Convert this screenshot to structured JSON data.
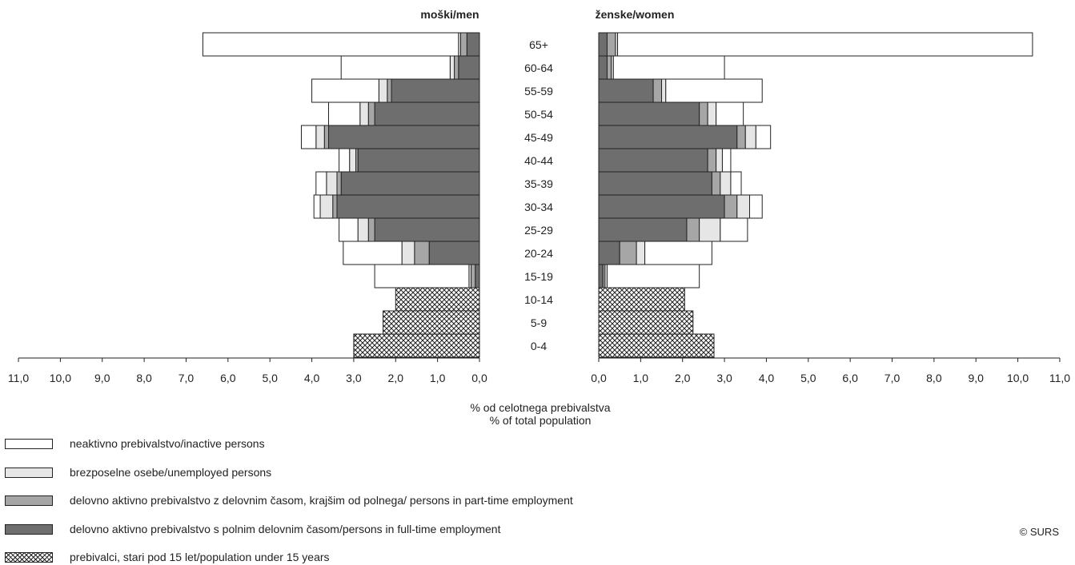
{
  "chart_data": {
    "type": "bar",
    "subtype": "population-pyramid",
    "side_titles": {
      "men": "moški/men",
      "women": "ženske/women"
    },
    "age_groups": [
      "65+",
      "60-64",
      "55-59",
      "50-54",
      "45-49",
      "40-44",
      "35-39",
      "30-34",
      "25-29",
      "20-24",
      "15-19",
      "10-14",
      "5-9",
      "0-4"
    ],
    "stack_order": [
      "full_time",
      "part_time",
      "unemployed",
      "inactive",
      "under_15"
    ],
    "series": [
      {
        "key": "full_time",
        "name": "delovno aktivno prebivalstvo s polnim delovnim časom/persons in full-time employment",
        "color": "#6e6e6e",
        "men": [
          0.3,
          0.5,
          2.1,
          2.5,
          3.6,
          2.9,
          3.3,
          3.4,
          2.5,
          1.2,
          0.1,
          0,
          0,
          0
        ],
        "women": [
          0.2,
          0.2,
          1.3,
          2.4,
          3.3,
          2.6,
          2.7,
          3.0,
          2.1,
          0.5,
          0.1,
          0,
          0,
          0
        ]
      },
      {
        "key": "part_time",
        "name": "delovno aktivno prebivalstvo z delovnim časom, krajšim od polnega/ persons in part-time employment",
        "color": "#a6a6a6",
        "men": [
          0.15,
          0.1,
          0.1,
          0.15,
          0.1,
          0.05,
          0.1,
          0.1,
          0.15,
          0.35,
          0.1,
          0,
          0,
          0
        ],
        "women": [
          0.2,
          0.1,
          0.2,
          0.2,
          0.2,
          0.2,
          0.2,
          0.3,
          0.3,
          0.4,
          0.05,
          0,
          0,
          0
        ]
      },
      {
        "key": "unemployed",
        "name": "brezposelne osebe/unemployed persons",
        "color": "#e6e6e6",
        "men": [
          0.05,
          0.1,
          0.2,
          0.2,
          0.2,
          0.15,
          0.25,
          0.3,
          0.25,
          0.3,
          0.05,
          0,
          0,
          0
        ],
        "women": [
          0.05,
          0.05,
          0.1,
          0.2,
          0.25,
          0.15,
          0.25,
          0.3,
          0.5,
          0.2,
          0.05,
          0,
          0,
          0
        ]
      },
      {
        "key": "inactive",
        "name": "neaktivno prebivalstvo/inactive persons",
        "color": "#ffffff",
        "men": [
          6.1,
          2.6,
          1.6,
          0.75,
          0.35,
          0.25,
          0.25,
          0.15,
          0.45,
          1.4,
          2.25,
          0,
          0,
          0
        ],
        "women": [
          9.9,
          2.65,
          2.3,
          0.65,
          0.35,
          0.2,
          0.25,
          0.3,
          0.65,
          1.6,
          2.2,
          0,
          0,
          0
        ]
      },
      {
        "key": "under_15",
        "name": "prebivalci, stari pod 15 let/population under 15 years",
        "color": "pattern",
        "men": [
          0,
          0,
          0,
          0,
          0,
          0,
          0,
          0,
          0,
          0,
          0,
          2.0,
          2.3,
          3.0
        ],
        "women": [
          0,
          0,
          0,
          0,
          0,
          0,
          0,
          0,
          0,
          0,
          0,
          2.05,
          2.25,
          2.75
        ]
      }
    ],
    "x_axis": {
      "range": [
        0,
        11
      ],
      "tick_step": 1,
      "tick_labels_men": [
        "11,0",
        "10,0",
        "9,0",
        "8,0",
        "7,0",
        "6,0",
        "5,0",
        "4,0",
        "3,0",
        "2,0",
        "1,0",
        "0,0"
      ],
      "tick_labels_women": [
        "0,0",
        "1,0",
        "2,0",
        "3,0",
        "4,0",
        "5,0",
        "6,0",
        "7,0",
        "8,0",
        "9,0",
        "10,0",
        "11,0"
      ],
      "title_line1": "% od celotnega prebivalstva",
      "title_line2": "% of total population"
    },
    "legend": [
      {
        "key": "inactive",
        "label": "neaktivno prebivalstvo/inactive persons"
      },
      {
        "key": "unemployed",
        "label": "brezposelne osebe/unemployed persons"
      },
      {
        "key": "part_time",
        "label": "delovno aktivno prebivalstvo z delovnim časom, krajšim od polnega/ persons in part-time employment"
      },
      {
        "key": "full_time",
        "label": "delovno aktivno prebivalstvo s polnim delovnim časom/persons in full-time employment"
      },
      {
        "key": "under_15",
        "label": "prebivalci, stari pod 15 let/population under 15 years"
      }
    ],
    "grid": false,
    "legend_position": "bottom-left"
  },
  "copyright": "© SURS"
}
